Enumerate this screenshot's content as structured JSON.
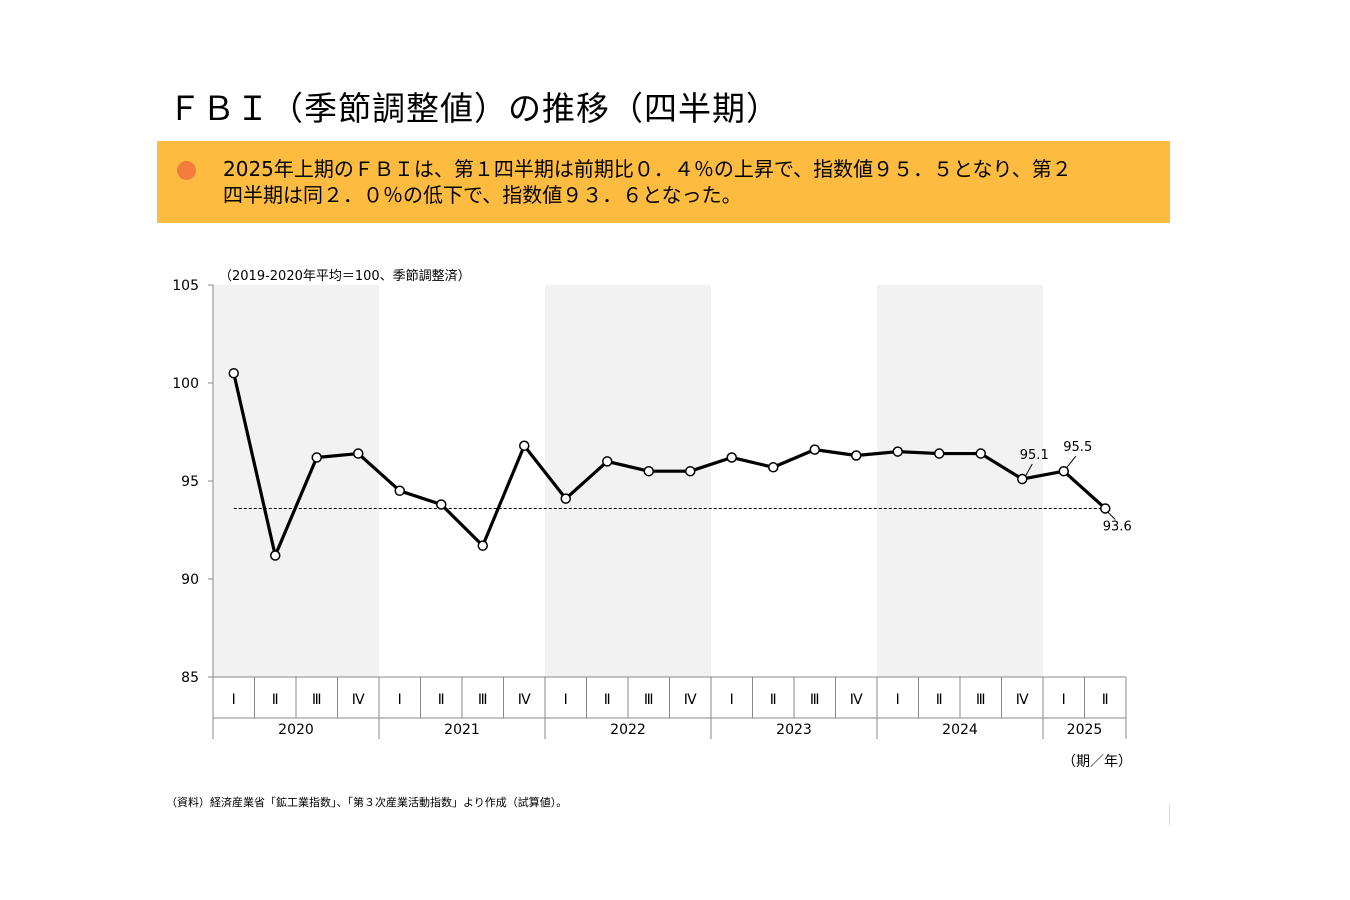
{
  "title": "ＦＢＩ（季節調整値）の推移（四半期）",
  "summary": {
    "line1": "2025年上期のＦＢＩは、第１四半期は前期比０．４％の上昇で、指数値９５．５となり、第２",
    "line2": "四半期は同２．０％の低下で、指数値９３．６となった。"
  },
  "source_note": "（資料）経済産業省「鉱工業指数」、「第３次産業活動指数」より作成（試算値）。",
  "colors": {
    "summary_bg": "#FDBB3F",
    "bullet": "#F47C3C",
    "band": "#F2F2F2",
    "line": "#000000"
  },
  "chart_data": {
    "type": "line",
    "ylabel": "（2019-2020年平均＝100、季節調整済）",
    "xunit": "（期／年）",
    "ylim": [
      85,
      105
    ],
    "yticks": [
      85,
      90,
      95,
      100,
      105
    ],
    "years": [
      {
        "label": "2020",
        "quarters": 4
      },
      {
        "label": "2021",
        "quarters": 4
      },
      {
        "label": "2022",
        "quarters": 4
      },
      {
        "label": "2023",
        "quarters": 4
      },
      {
        "label": "2024",
        "quarters": 4
      },
      {
        "label": "2025",
        "quarters": 2
      }
    ],
    "shaded_years": [
      "2020",
      "2022",
      "2024"
    ],
    "quarter_labels": [
      "Ⅰ",
      "Ⅱ",
      "Ⅲ",
      "Ⅳ",
      "Ⅰ",
      "Ⅱ",
      "Ⅲ",
      "Ⅳ",
      "Ⅰ",
      "Ⅱ",
      "Ⅲ",
      "Ⅳ",
      "Ⅰ",
      "Ⅱ",
      "Ⅲ",
      "Ⅳ",
      "Ⅰ",
      "Ⅱ",
      "Ⅲ",
      "Ⅳ",
      "Ⅰ",
      "Ⅱ"
    ],
    "series": [
      {
        "values": [
          100.5,
          91.2,
          96.2,
          96.4,
          94.5,
          93.8,
          91.7,
          96.8,
          94.1,
          96.0,
          95.5,
          95.5,
          96.2,
          95.7,
          96.6,
          96.3,
          96.5,
          96.4,
          96.4,
          95.1,
          95.5,
          93.6
        ]
      }
    ],
    "reference_line": 93.6,
    "annotations": [
      {
        "index": 19,
        "text": "95.1"
      },
      {
        "index": 20,
        "text": "95.5"
      },
      {
        "index": 21,
        "text": "93.6"
      }
    ]
  }
}
